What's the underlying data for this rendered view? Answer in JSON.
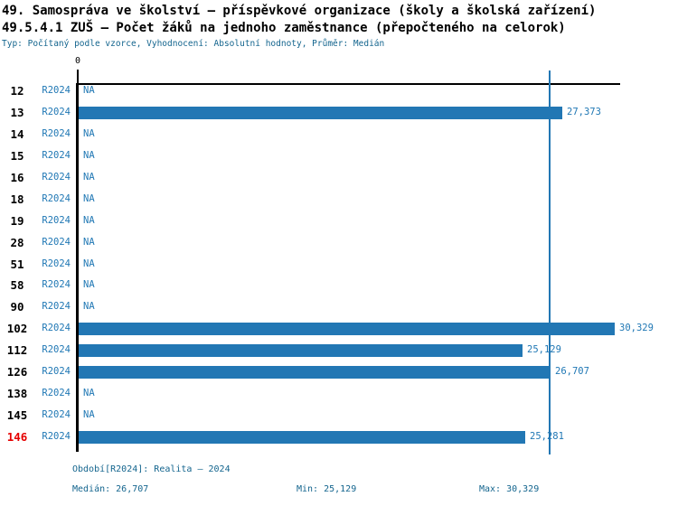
{
  "header": {
    "title_line1": "49. Samospráva ve školství – příspěvkové organizace (školy a školská zařízení)",
    "title_line2": "49.5.4.1 ZUŠ – Počet žáků na jednoho zaměstnance (přepočteného na celorok)",
    "subtitle": "Typ: Počítaný podle vzorce, Vyhodnocení: Absolutní hodnoty, Průměr: Medián"
  },
  "axis": {
    "zero_label": "0"
  },
  "colors": {
    "bar": "#2277b4",
    "blue_text": "#1f77b4",
    "teal_text": "#14658e",
    "highlight_red": "#e60000",
    "axis": "#000000"
  },
  "chart_data": {
    "type": "bar",
    "orientation": "horizontal",
    "title": "49.5.4.1 ZUŠ – Počet žáků na jednoho zaměstnance (přepočteného na celorok)",
    "categories": [
      "12",
      "13",
      "14",
      "15",
      "16",
      "18",
      "19",
      "28",
      "51",
      "58",
      "90",
      "102",
      "112",
      "126",
      "138",
      "145",
      "146"
    ],
    "series": [
      {
        "name": "R2024",
        "values": [
          null,
          27373,
          null,
          null,
          null,
          null,
          null,
          null,
          null,
          null,
          null,
          30329,
          25129,
          26707,
          null,
          null,
          25281
        ]
      }
    ],
    "value_labels": [
      "NA",
      "27,373",
      "NA",
      "NA",
      "NA",
      "NA",
      "NA",
      "NA",
      "NA",
      "NA",
      "NA",
      "30,329",
      "25,129",
      "26,707",
      "NA",
      "NA",
      "25,281"
    ],
    "na_label": "NA",
    "highlighted_category": "146",
    "xlim": [
      0,
      30700
    ],
    "median_line_value": 26707,
    "legend_position": "none",
    "grid": false
  },
  "footer": {
    "period": "Období[R2024]: Realita – 2024",
    "median": "Medián: 26,707",
    "min": "Min: 25,129",
    "max": "Max: 30,329"
  }
}
